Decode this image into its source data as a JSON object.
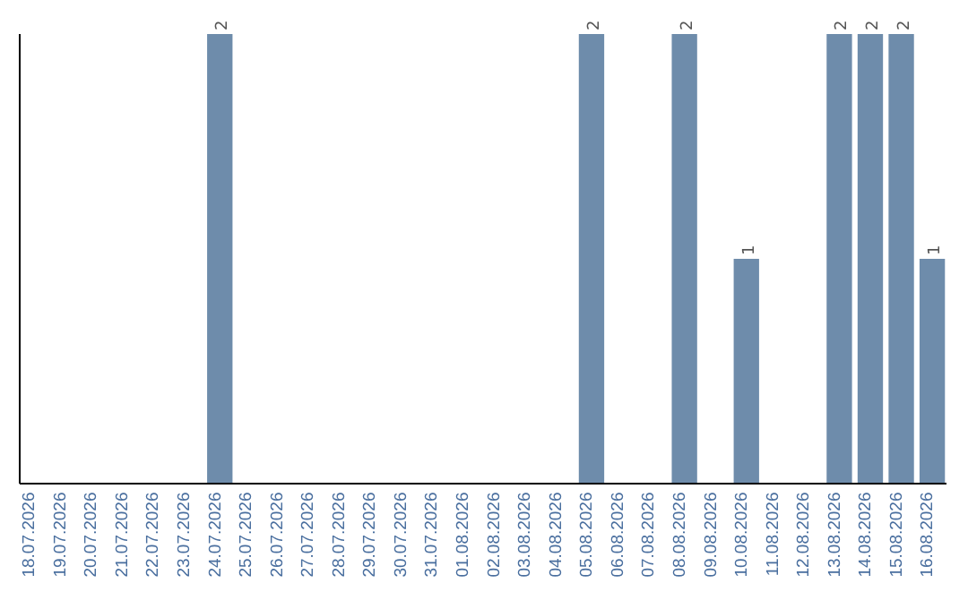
{
  "chart_data": {
    "type": "bar",
    "categories": [
      "18.07.2026",
      "19.07.2026",
      "20.07.2026",
      "21.07.2026",
      "22.07.2026",
      "23.07.2026",
      "24.07.2026",
      "25.07.2026",
      "26.07.2026",
      "27.07.2026",
      "28.07.2026",
      "29.07.2026",
      "30.07.2026",
      "31.07.2026",
      "01.08.2026",
      "02.08.2026",
      "03.08.2026",
      "04.08.2026",
      "05.08.2026",
      "06.08.2026",
      "07.08.2026",
      "08.08.2026",
      "09.08.2026",
      "10.08.2026",
      "11.08.2026",
      "12.08.2026",
      "13.08.2026",
      "14.08.2026",
      "15.08.2026",
      "16.08.2026"
    ],
    "values": [
      0,
      0,
      0,
      0,
      0,
      0,
      2,
      0,
      0,
      0,
      0,
      0,
      0,
      0,
      0,
      0,
      0,
      0,
      2,
      0,
      0,
      2,
      0,
      1,
      0,
      0,
      2,
      2,
      2,
      1
    ],
    "value_labels": [
      null,
      null,
      null,
      null,
      null,
      null,
      "2",
      null,
      null,
      null,
      null,
      null,
      null,
      null,
      null,
      null,
      null,
      null,
      "2",
      null,
      null,
      "2",
      null,
      "1",
      null,
      null,
      "2",
      "2",
      "2",
      "1"
    ],
    "color": "#6e8cab",
    "ylim": [
      0,
      2
    ],
    "tick_labels": "x",
    "grid": false
  }
}
